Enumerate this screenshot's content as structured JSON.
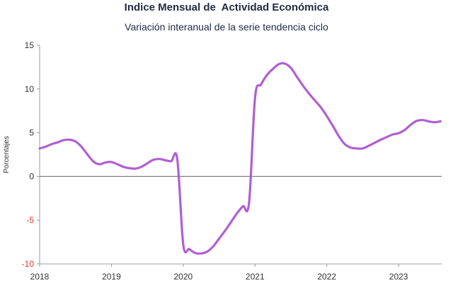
{
  "chart_data": {
    "type": "line",
    "title": "Indice Mensual de  Actividad Económica",
    "subtitle": "Variación interanual de la serie tendencia ciclo",
    "xlabel": "",
    "ylabel": "Porcentajes",
    "ylim": [
      -10,
      15
    ],
    "yticks": [
      "15",
      "10",
      "5",
      "0",
      "-5",
      "-10"
    ],
    "xticks": [
      "2018",
      "2019",
      "2020",
      "2021",
      "2022",
      "2023"
    ],
    "grid": false,
    "legend": "none",
    "colors": {
      "line": "#b05fd3",
      "zero_line": "#808080",
      "axis": "#999999",
      "negative_ticks": "#e0352b"
    },
    "series": [
      {
        "x": [
          2018.0,
          2018.083,
          2018.167,
          2018.25,
          2018.333,
          2018.417,
          2018.5,
          2018.583,
          2018.667,
          2018.75,
          2018.833,
          2018.917,
          2019.0,
          2019.083,
          2019.167,
          2019.25,
          2019.333,
          2019.417,
          2019.5,
          2019.583,
          2019.667,
          2019.75,
          2019.833,
          2019.917,
          2020.0,
          2020.083,
          2020.167,
          2020.25,
          2020.333,
          2020.417,
          2020.5,
          2020.583,
          2020.667,
          2020.75,
          2020.833,
          2020.917,
          2021.0,
          2021.083,
          2021.167,
          2021.25,
          2021.333,
          2021.417,
          2021.5,
          2021.583,
          2021.667,
          2021.75,
          2021.833,
          2021.917,
          2022.0,
          2022.083,
          2022.167,
          2022.25,
          2022.333,
          2022.417,
          2022.5,
          2022.583,
          2022.667,
          2022.75,
          2022.833,
          2022.917,
          2023.0,
          2023.083,
          2023.167,
          2023.25,
          2023.333,
          2023.417,
          2023.5,
          2023.583
        ],
        "values": [
          3.2,
          3.4,
          3.7,
          3.9,
          4.15,
          4.2,
          4.0,
          3.4,
          2.5,
          1.7,
          1.4,
          1.6,
          1.65,
          1.4,
          1.1,
          0.95,
          0.9,
          1.1,
          1.5,
          1.9,
          2.0,
          1.85,
          1.75,
          2.0,
          -7.8,
          -8.3,
          -8.75,
          -8.8,
          -8.6,
          -8.0,
          -7.1,
          -6.2,
          -5.2,
          -4.2,
          -3.4,
          -3.0,
          9.0,
          10.5,
          11.6,
          12.3,
          12.85,
          12.9,
          12.4,
          11.4,
          10.4,
          9.5,
          8.7,
          7.9,
          6.9,
          5.8,
          4.6,
          3.7,
          3.3,
          3.2,
          3.2,
          3.5,
          3.85,
          4.2,
          4.5,
          4.8,
          4.95,
          5.3,
          5.9,
          6.35,
          6.45,
          6.3,
          6.2,
          6.3
        ]
      }
    ]
  }
}
